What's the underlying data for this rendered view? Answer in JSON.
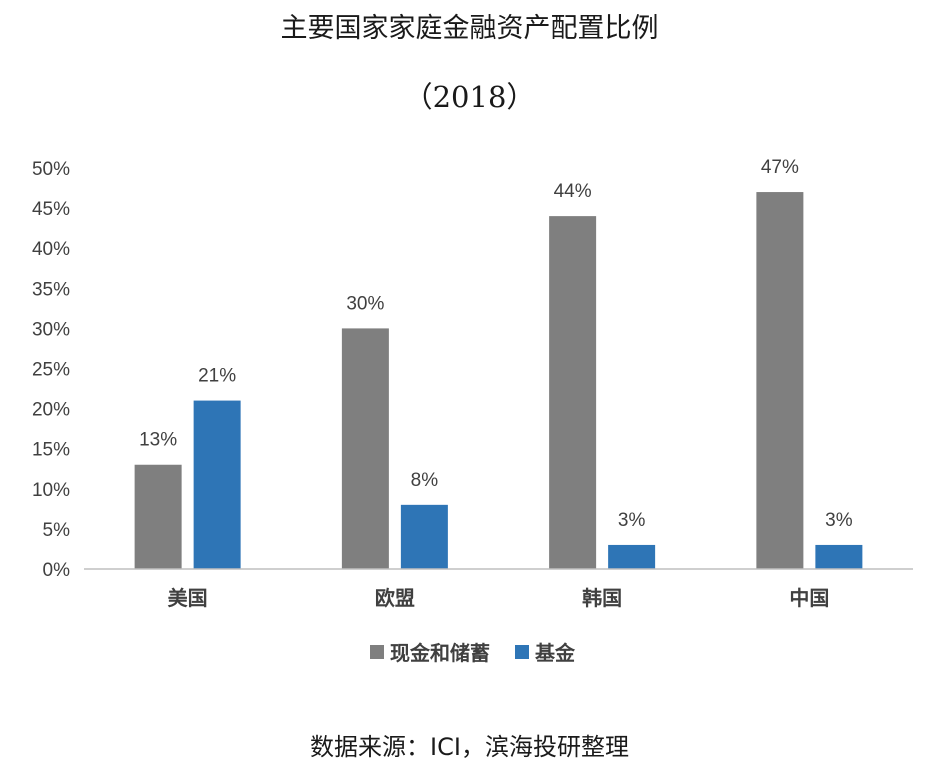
{
  "chart_data": {
    "type": "bar",
    "title": "主要国家家庭金融资产配置比例",
    "subtitle": "（2018）",
    "categories": [
      "美国",
      "欧盟",
      "韩国",
      "中国"
    ],
    "series": [
      {
        "name": "现金和储蓄",
        "values": [
          13,
          30,
          44,
          47
        ],
        "labels": [
          "13%",
          "30%",
          "44%",
          "47%"
        ],
        "color": "#7f7f7f"
      },
      {
        "name": "基金",
        "values": [
          21,
          8,
          3,
          3
        ],
        "labels": [
          "21%",
          "8%",
          "3%",
          "3%"
        ],
        "color": "#2e75b6"
      }
    ],
    "ylim": [
      0,
      50
    ],
    "yticks": [
      "0%",
      "5%",
      "10%",
      "15%",
      "20%",
      "25%",
      "30%",
      "35%",
      "40%",
      "45%",
      "50%"
    ],
    "grid": false,
    "legend_position": "bottom",
    "xlabel": "",
    "ylabel": ""
  },
  "source_note": "数据来源：ICI，滨海投研整理"
}
